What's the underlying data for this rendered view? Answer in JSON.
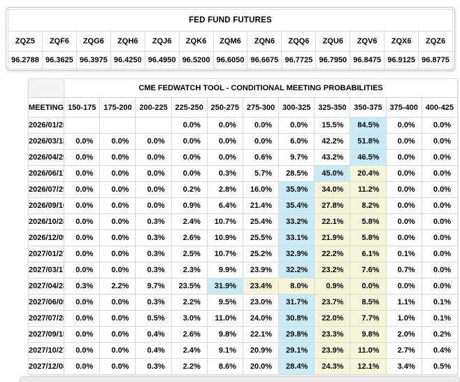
{
  "futures": {
    "title": "FED FUND FUTURES",
    "symbols": [
      "ZQZ5",
      "ZQF6",
      "ZQG6",
      "ZQH6",
      "ZQJ6",
      "ZQK6",
      "ZQM6",
      "ZQN6",
      "ZQQ6",
      "ZQU6",
      "ZQV6",
      "ZQX6",
      "ZQZ6"
    ],
    "prices": [
      "96.2788",
      "96.3625",
      "96.3975",
      "96.4250",
      "96.4950",
      "96.5200",
      "96.6050",
      "96.6675",
      "96.7725",
      "96.7950",
      "96.8475",
      "96.9125",
      "96.8775"
    ]
  },
  "fedwatch": {
    "title": "CME FEDWATCH TOOL - CONDITIONAL MEETING PROBABILITIES",
    "date_header": "MEETING DATE",
    "range_headers": [
      "150-175",
      "175-200",
      "200-225",
      "225-250",
      "250-275",
      "275-300",
      "300-325",
      "325-350",
      "350-375",
      "375-400",
      "400-425"
    ],
    "rows": [
      {
        "date": "2026/01/28",
        "values": [
          "",
          "",
          "",
          "0.0%",
          "0.0%",
          "0.0%",
          "0.0%",
          "15.5%",
          "84.5%",
          "0.0%",
          "0.0%"
        ],
        "blue": 8,
        "yellow": []
      },
      {
        "date": "2026/03/18",
        "values": [
          "0.0%",
          "0.0%",
          "0.0%",
          "0.0%",
          "0.0%",
          "0.0%",
          "6.0%",
          "42.2%",
          "51.8%",
          "0.0%",
          "0.0%"
        ],
        "blue": 8,
        "yellow": []
      },
      {
        "date": "2026/04/29",
        "values": [
          "0.0%",
          "0.0%",
          "0.0%",
          "0.0%",
          "0.0%",
          "0.6%",
          "9.7%",
          "43.2%",
          "46.5%",
          "0.0%",
          "0.0%"
        ],
        "blue": 8,
        "yellow": []
      },
      {
        "date": "2026/06/17",
        "values": [
          "0.0%",
          "0.0%",
          "0.0%",
          "0.0%",
          "0.3%",
          "5.7%",
          "28.5%",
          "45.0%",
          "20.4%",
          "0.0%",
          "0.0%"
        ],
        "blue": 7,
        "yellow": [
          8
        ]
      },
      {
        "date": "2026/07/29",
        "values": [
          "0.0%",
          "0.0%",
          "0.0%",
          "0.2%",
          "2.8%",
          "16.0%",
          "35.9%",
          "34.0%",
          "11.2%",
          "0.0%",
          "0.0%"
        ],
        "blue": 6,
        "yellow": [
          7,
          8
        ]
      },
      {
        "date": "2026/09/16",
        "values": [
          "0.0%",
          "0.0%",
          "0.0%",
          "0.9%",
          "6.4%",
          "21.4%",
          "35.4%",
          "27.8%",
          "8.2%",
          "0.0%",
          "0.0%"
        ],
        "blue": 6,
        "yellow": [
          7,
          8
        ]
      },
      {
        "date": "2026/10/28",
        "values": [
          "0.0%",
          "0.0%",
          "0.3%",
          "2.4%",
          "10.7%",
          "25.4%",
          "33.2%",
          "22.1%",
          "5.8%",
          "0.0%",
          "0.0%"
        ],
        "blue": 6,
        "yellow": [
          7,
          8
        ]
      },
      {
        "date": "2026/12/09",
        "values": [
          "0.0%",
          "0.0%",
          "0.3%",
          "2.6%",
          "10.9%",
          "25.5%",
          "33.1%",
          "21.9%",
          "5.8%",
          "0.0%",
          "0.0%"
        ],
        "blue": 6,
        "yellow": [
          7,
          8
        ]
      },
      {
        "date": "2027/01/27",
        "values": [
          "0.0%",
          "0.0%",
          "0.3%",
          "2.5%",
          "10.7%",
          "25.2%",
          "32.9%",
          "22.2%",
          "6.1%",
          "0.1%",
          "0.0%"
        ],
        "blue": 6,
        "yellow": [
          7,
          8
        ]
      },
      {
        "date": "2027/03/17",
        "values": [
          "0.0%",
          "0.0%",
          "0.3%",
          "2.3%",
          "9.9%",
          "23.9%",
          "32.2%",
          "23.2%",
          "7.6%",
          "0.7%",
          "0.0%"
        ],
        "blue": 6,
        "yellow": [
          7,
          8
        ]
      },
      {
        "date": "2027/04/28",
        "values": [
          "0.3%",
          "2.2%",
          "9.7%",
          "23.5%",
          "31.9%",
          "23.4%",
          "8.0%",
          "0.9%",
          "0.0%",
          "0.0%",
          "0.0%"
        ],
        "blue": 4,
        "yellow": [
          5,
          6,
          7,
          8
        ]
      },
      {
        "date": "2027/06/09",
        "values": [
          "0.0%",
          "0.0%",
          "0.3%",
          "2.2%",
          "9.5%",
          "23.0%",
          "31.7%",
          "23.7%",
          "8.5%",
          "1.1%",
          "0.1%"
        ],
        "blue": 6,
        "yellow": [
          7,
          8
        ]
      },
      {
        "date": "2027/07/28",
        "values": [
          "0.0%",
          "0.0%",
          "0.5%",
          "3.0%",
          "11.0%",
          "24.0%",
          "30.8%",
          "22.0%",
          "7.7%",
          "1.0%",
          "0.1%"
        ],
        "blue": 6,
        "yellow": [
          7,
          8
        ]
      },
      {
        "date": "2027/09/15",
        "values": [
          "0.0%",
          "0.0%",
          "0.4%",
          "2.6%",
          "9.8%",
          "22.1%",
          "29.8%",
          "23.3%",
          "9.8%",
          "2.0%",
          "0.2%"
        ],
        "blue": 6,
        "yellow": [
          7,
          8
        ]
      },
      {
        "date": "2027/10/27",
        "values": [
          "0.0%",
          "0.0%",
          "0.4%",
          "2.4%",
          "9.1%",
          "20.9%",
          "29.1%",
          "23.9%",
          "11.0%",
          "2.7%",
          "0.4%"
        ],
        "blue": 6,
        "yellow": [
          7,
          8
        ]
      },
      {
        "date": "2027/12/08",
        "values": [
          "0.0%",
          "0.0%",
          "0.3%",
          "2.2%",
          "8.6%",
          "20.0%",
          "28.4%",
          "24.3%",
          "12.1%",
          "3.4%",
          "0.5%"
        ],
        "blue": 6,
        "yellow": [
          7,
          8
        ]
      }
    ]
  },
  "colors": {
    "highlight_blue": "#c8ecf7",
    "highlight_yellow": "#f5f5d8",
    "border": "#d9d9d9"
  }
}
